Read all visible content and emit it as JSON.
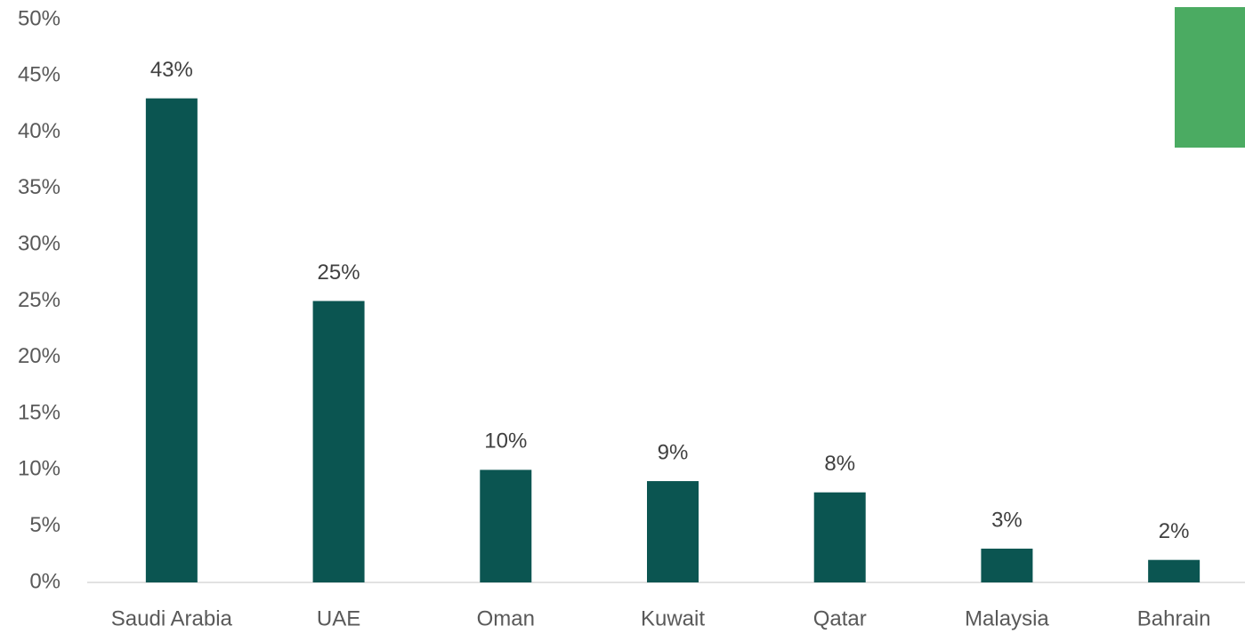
{
  "chart_data": {
    "type": "bar",
    "categories": [
      "Saudi Arabia",
      "UAE",
      "Oman",
      "Kuwait",
      "Qatar",
      "Malaysia",
      "Bahrain"
    ],
    "values": [
      43,
      25,
      10,
      9,
      8,
      3,
      2
    ],
    "value_labels": [
      "43%",
      "25%",
      "10%",
      "9%",
      "8%",
      "3%",
      "2%"
    ],
    "color": "#0b5551",
    "ylim": [
      0,
      50
    ],
    "yticks": [
      {
        "value": 0,
        "label": "0%"
      },
      {
        "value": 5,
        "label": "5%"
      },
      {
        "value": 10,
        "label": "10%"
      },
      {
        "value": 15,
        "label": "15%"
      },
      {
        "value": 20,
        "label": "20%"
      },
      {
        "value": 25,
        "label": "25%"
      },
      {
        "value": 30,
        "label": "30%"
      },
      {
        "value": 35,
        "label": "35%"
      },
      {
        "value": 40,
        "label": "40%"
      },
      {
        "value": 45,
        "label": "45%"
      },
      {
        "value": 50,
        "label": "50%"
      }
    ],
    "grid": false
  }
}
